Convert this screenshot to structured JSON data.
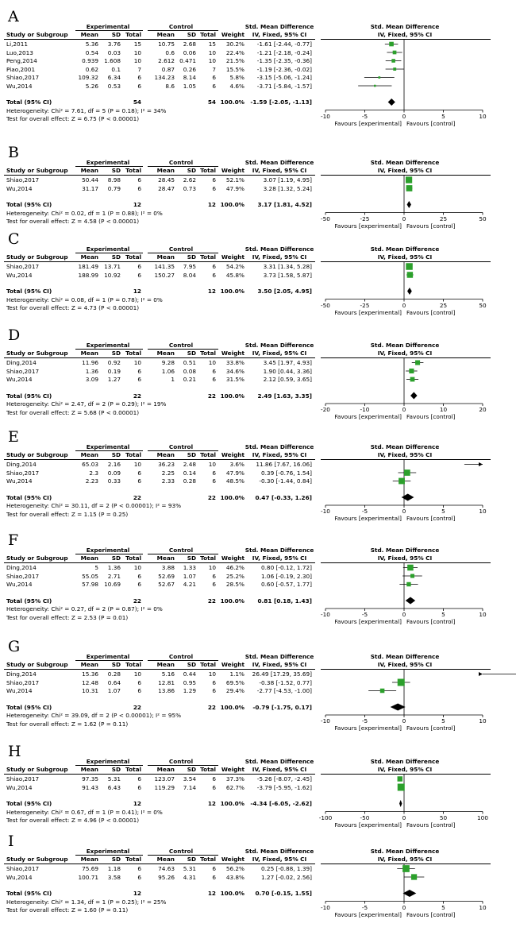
{
  "header": {
    "experimental": "Experimental",
    "control": "Control",
    "smd_title": "Std. Mean Difference",
    "method": "IV, Fixed, 95% CI",
    "study": "Study or Subgroup",
    "mean": "Mean",
    "sd": "SD",
    "total": "Total",
    "weight": "Weight",
    "total_ci": "Total (95% CI)",
    "favours_left": "Favours [experimental]",
    "favours_right": "Favours [control]"
  },
  "colors": {
    "square": "#2ca02c",
    "diamond": "#000000",
    "line": "#000000"
  },
  "chart_data": [
    {
      "type": "forest",
      "label": "A",
      "xlim": [
        -10,
        10
      ],
      "ticks": [
        "-10",
        "-5",
        "0",
        "5",
        "10"
      ],
      "tick_values": [
        -10,
        -5,
        0,
        5,
        10
      ],
      "studies": [
        {
          "name": "Li,2011",
          "em": "5.36",
          "esd": "3.76",
          "en": "15",
          "cm": "10.75",
          "csd": "2.68",
          "cn": "15",
          "w": "30.2%",
          "ci": "-1.61 [-2.44, -0.77]",
          "est": -1.61,
          "lo": -2.44,
          "hi": -0.77
        },
        {
          "name": "Luo,2013",
          "em": "0.54",
          "esd": "0.03",
          "en": "10",
          "cm": "0.6",
          "csd": "0.06",
          "cn": "10",
          "w": "22.4%",
          "ci": "-1.21 [-2.18, -0.24]",
          "est": -1.21,
          "lo": -2.18,
          "hi": -0.24
        },
        {
          "name": "Peng,2014",
          "em": "0.939",
          "esd": "1.608",
          "en": "10",
          "cm": "2.612",
          "csd": "0.471",
          "cn": "10",
          "w": "21.5%",
          "ci": "-1.35 [-2.35, -0.36]",
          "est": -1.35,
          "lo": -2.35,
          "hi": -0.36
        },
        {
          "name": "Piao,2001",
          "em": "0.62",
          "esd": "0.1",
          "en": "7",
          "cm": "0.87",
          "csd": "0.26",
          "cn": "7",
          "w": "15.5%",
          "ci": "-1.19 [-2.36, -0.02]",
          "est": -1.19,
          "lo": -2.36,
          "hi": -0.02
        },
        {
          "name": "Shiao,2017",
          "em": "109.32",
          "esd": "6.34",
          "en": "6",
          "cm": "134.23",
          "csd": "8.14",
          "cn": "6",
          "w": "5.8%",
          "ci": "-3.15 [-5.06, -1.24]",
          "est": -3.15,
          "lo": -5.06,
          "hi": -1.24
        },
        {
          "name": "Wu,2014",
          "em": "5.26",
          "esd": "0.53",
          "en": "6",
          "cm": "8.6",
          "csd": "1.05",
          "cn": "6",
          "w": "4.6%",
          "ci": "-3.71 [-5.84, -1.57]",
          "est": -3.71,
          "lo": -5.84,
          "hi": -1.57
        }
      ],
      "total": {
        "en": "54",
        "cn": "54",
        "w": "100.0%",
        "ci": "-1.59 [-2.05, -1.13]",
        "est": -1.59,
        "lo": -2.05,
        "hi": -1.13
      },
      "heterogeneity": "Heterogeneity: Chi² = 7.61, df = 5 (P = 0.18); I² = 34%",
      "overall": "Test for overall effect: Z = 6.75 (P < 0.00001)"
    },
    {
      "type": "forest",
      "label": "B",
      "xlim": [
        -50,
        50
      ],
      "ticks": [
        "-50",
        "-25",
        "0",
        "25",
        "50"
      ],
      "tick_values": [
        -50,
        -25,
        0,
        25,
        50
      ],
      "studies": [
        {
          "name": "Shiao,2017",
          "em": "50.44",
          "esd": "8.98",
          "en": "6",
          "cm": "28.45",
          "csd": "2.62",
          "cn": "6",
          "w": "52.1%",
          "ci": "3.07 [1.19, 4.95]",
          "est": 3.07,
          "lo": 1.19,
          "hi": 4.95
        },
        {
          "name": "Wu,2014",
          "em": "31.17",
          "esd": "0.79",
          "en": "6",
          "cm": "28.47",
          "csd": "0.73",
          "cn": "6",
          "w": "47.9%",
          "ci": "3.28 [1.32, 5.24]",
          "est": 3.28,
          "lo": 1.32,
          "hi": 5.24
        }
      ],
      "total": {
        "en": "12",
        "cn": "12",
        "w": "100.0%",
        "ci": "3.17 [1.81, 4.52]",
        "est": 3.17,
        "lo": 1.81,
        "hi": 4.52
      },
      "heterogeneity": "Heterogeneity: Chi² = 0.02, df = 1 (P = 0.88); I² = 0%",
      "overall": "Test for overall effect: Z = 4.58 (P < 0.00001)"
    },
    {
      "type": "forest",
      "label": "C",
      "xlim": [
        -50,
        50
      ],
      "ticks": [
        "-50",
        "-25",
        "0",
        "25",
        "50"
      ],
      "tick_values": [
        -50,
        -25,
        0,
        25,
        50
      ],
      "studies": [
        {
          "name": "Shiao,2017",
          "em": "181.49",
          "esd": "13.71",
          "en": "6",
          "cm": "141.35",
          "csd": "7.95",
          "cn": "6",
          "w": "54.2%",
          "ci": "3.31 [1.34, 5.28]",
          "est": 3.31,
          "lo": 1.34,
          "hi": 5.28
        },
        {
          "name": "Wu,2014",
          "em": "188.99",
          "esd": "10.92",
          "en": "6",
          "cm": "150.27",
          "csd": "8.04",
          "cn": "6",
          "w": "45.8%",
          "ci": "3.73 [1.58, 5.87]",
          "est": 3.73,
          "lo": 1.58,
          "hi": 5.87
        }
      ],
      "total": {
        "en": "12",
        "cn": "12",
        "w": "100.0%",
        "ci": "3.50 [2.05, 4.95]",
        "est": 3.5,
        "lo": 2.05,
        "hi": 4.95
      },
      "heterogeneity": "Heterogeneity: Chi² = 0.08, df = 1 (P = 0.78); I² = 0%",
      "overall": "Test for overall effect: Z = 4.73 (P < 0.00001)"
    },
    {
      "type": "forest",
      "label": "D",
      "xlim": [
        -20,
        20
      ],
      "ticks": [
        "-20",
        "-10",
        "0",
        "10",
        "20"
      ],
      "tick_values": [
        -20,
        -10,
        0,
        10,
        20
      ],
      "studies": [
        {
          "name": "Ding,2014",
          "em": "11.96",
          "esd": "0.92",
          "en": "10",
          "cm": "9.28",
          "csd": "0.51",
          "cn": "10",
          "w": "33.8%",
          "ci": "3.45 [1.97, 4.93]",
          "est": 3.45,
          "lo": 1.97,
          "hi": 4.93
        },
        {
          "name": "Shiao,2017",
          "em": "1.36",
          "esd": "0.19",
          "en": "6",
          "cm": "1.06",
          "csd": "0.08",
          "cn": "6",
          "w": "34.6%",
          "ci": "1.90 [0.44, 3.36]",
          "est": 1.9,
          "lo": 0.44,
          "hi": 3.36
        },
        {
          "name": "Wu,2014",
          "em": "3.09",
          "esd": "1.27",
          "en": "6",
          "cm": "1",
          "csd": "0.21",
          "cn": "6",
          "w": "31.5%",
          "ci": "2.12 [0.59, 3.65]",
          "est": 2.12,
          "lo": 0.59,
          "hi": 3.65
        }
      ],
      "total": {
        "en": "22",
        "cn": "22",
        "w": "100.0%",
        "ci": "2.49 [1.63, 3.35]",
        "est": 2.49,
        "lo": 1.63,
        "hi": 3.35
      },
      "heterogeneity": "Heterogeneity: Chi² = 2.47, df = 2 (P = 0.29); I² = 19%",
      "overall": "Test for overall effect: Z = 5.68 (P < 0.00001)"
    },
    {
      "type": "forest",
      "label": "E",
      "xlim": [
        -10,
        10
      ],
      "ticks": [
        "-10",
        "-5",
        "0",
        "5",
        "10"
      ],
      "tick_values": [
        -10,
        -5,
        0,
        5,
        10
      ],
      "studies": [
        {
          "name": "Ding,2014",
          "em": "65.03",
          "esd": "2.16",
          "en": "10",
          "cm": "36.23",
          "csd": "2.48",
          "cn": "10",
          "w": "3.6%",
          "ci": "11.86 [7.67, 16.06]",
          "est": 11.86,
          "lo": 7.67,
          "hi": 16.06
        },
        {
          "name": "Shiao,2017",
          "em": "2.3",
          "esd": "0.09",
          "en": "6",
          "cm": "2.25",
          "csd": "0.14",
          "cn": "6",
          "w": "47.9%",
          "ci": "0.39 [-0.76, 1.54]",
          "est": 0.39,
          "lo": -0.76,
          "hi": 1.54
        },
        {
          "name": "Wu,2014",
          "em": "2.23",
          "esd": "0.33",
          "en": "6",
          "cm": "2.33",
          "csd": "0.28",
          "cn": "6",
          "w": "48.5%",
          "ci": "-0.30 [-1.44, 0.84]",
          "est": -0.3,
          "lo": -1.44,
          "hi": 0.84
        }
      ],
      "total": {
        "en": "22",
        "cn": "22",
        "w": "100.0%",
        "ci": "0.47 [-0.33, 1.26]",
        "est": 0.47,
        "lo": -0.33,
        "hi": 1.26
      },
      "heterogeneity": "Heterogeneity: Chi² = 30.11, df = 2 (P < 0.00001); I² = 93%",
      "overall": "Test for overall effect: Z = 1.15 (P = 0.25)"
    },
    {
      "type": "forest",
      "label": "F",
      "xlim": [
        -10,
        10
      ],
      "ticks": [
        "-10",
        "-5",
        "0",
        "5",
        "10"
      ],
      "tick_values": [
        -10,
        -5,
        0,
        5,
        10
      ],
      "studies": [
        {
          "name": "Ding,2014",
          "em": "5",
          "esd": "1.36",
          "en": "10",
          "cm": "3.88",
          "csd": "1.33",
          "cn": "10",
          "w": "46.2%",
          "ci": "0.80 [-0.12, 1.72]",
          "est": 0.8,
          "lo": -0.12,
          "hi": 1.72
        },
        {
          "name": "Shiao,2017",
          "em": "55.05",
          "esd": "2.71",
          "en": "6",
          "cm": "52.69",
          "csd": "1.07",
          "cn": "6",
          "w": "25.2%",
          "ci": "1.06 [-0.19, 2.30]",
          "est": 1.06,
          "lo": -0.19,
          "hi": 2.3
        },
        {
          "name": "Wu,2014",
          "em": "57.98",
          "esd": "10.69",
          "en": "6",
          "cm": "52.67",
          "csd": "4.21",
          "cn": "6",
          "w": "28.5%",
          "ci": "0.60 [-0.57, 1.77]",
          "est": 0.6,
          "lo": -0.57,
          "hi": 1.77
        }
      ],
      "total": {
        "en": "22",
        "cn": "22",
        "w": "100.0%",
        "ci": "0.81 [0.18, 1.43]",
        "est": 0.81,
        "lo": 0.18,
        "hi": 1.43
      },
      "heterogeneity": "Heterogeneity: Chi² = 0.27, df = 2 (P = 0.87); I² = 0%",
      "overall": "Test for overall effect: Z = 2.53 (P = 0.01)"
    },
    {
      "type": "forest",
      "label": "G",
      "xlim": [
        -10,
        10
      ],
      "ticks": [
        "-10",
        "-5",
        "0",
        "5",
        "10"
      ],
      "tick_values": [
        -10,
        -5,
        0,
        5,
        10
      ],
      "studies": [
        {
          "name": "Ding,2014",
          "em": "15.36",
          "esd": "0.28",
          "en": "10",
          "cm": "5.16",
          "csd": "0.44",
          "cn": "10",
          "w": "1.1%",
          "ci": "26.49 [17.29, 35.69]",
          "est": 26.49,
          "lo": 17.29,
          "hi": 35.69
        },
        {
          "name": "Shiao,2017",
          "em": "12.48",
          "esd": "0.64",
          "en": "6",
          "cm": "12.81",
          "csd": "0.95",
          "cn": "6",
          "w": "69.5%",
          "ci": "-0.38 [-1.52, 0.77]",
          "est": -0.38,
          "lo": -1.52,
          "hi": 0.77
        },
        {
          "name": "Wu,2014",
          "em": "10.31",
          "esd": "1.07",
          "en": "6",
          "cm": "13.86",
          "csd": "1.29",
          "cn": "6",
          "w": "29.4%",
          "ci": "-2.77 [-4.53, -1.00]",
          "est": -2.77,
          "lo": -4.53,
          "hi": -1.0
        }
      ],
      "total": {
        "en": "22",
        "cn": "22",
        "w": "100.0%",
        "ci": "-0.79 [-1.75, 0.17]",
        "est": -0.79,
        "lo": -1.75,
        "hi": 0.17
      },
      "heterogeneity": "Heterogeneity: Chi² = 39.09, df = 2 (P < 0.00001); I² = 95%",
      "overall": "Test for overall effect: Z = 1.62 (P = 0.11)"
    },
    {
      "type": "forest",
      "label": "H",
      "xlim": [
        -100,
        100
      ],
      "ticks": [
        "-100",
        "-50",
        "0",
        "50",
        "100"
      ],
      "tick_values": [
        -100,
        -50,
        0,
        50,
        100
      ],
      "studies": [
        {
          "name": "Shiao,2017",
          "em": "97.35",
          "esd": "5.31",
          "en": "6",
          "cm": "123.07",
          "csd": "3.54",
          "cn": "6",
          "w": "37.3%",
          "ci": "-5.26 [-8.07, -2.45]",
          "est": -5.26,
          "lo": -8.07,
          "hi": -2.45
        },
        {
          "name": "Wu,2014",
          "em": "91.43",
          "esd": "6.43",
          "en": "6",
          "cm": "119.29",
          "csd": "7.14",
          "cn": "6",
          "w": "62.7%",
          "ci": "-3.79 [-5.95, -1.62]",
          "est": -3.79,
          "lo": -5.95,
          "hi": -1.62
        }
      ],
      "total": {
        "en": "12",
        "cn": "12",
        "w": "100.0%",
        "ci": "-4.34 [-6.05, -2.62]",
        "est": -4.34,
        "lo": -6.05,
        "hi": -2.62
      },
      "heterogeneity": "Heterogeneity: Chi² = 0.67, df = 1 (P = 0.41); I² = 0%",
      "overall": "Test for overall effect: Z = 4.96 (P < 0.00001)"
    },
    {
      "type": "forest",
      "label": "I",
      "xlim": [
        -10,
        10
      ],
      "ticks": [
        "-10",
        "-5",
        "0",
        "5",
        "10"
      ],
      "tick_values": [
        -10,
        -5,
        0,
        5,
        10
      ],
      "studies": [
        {
          "name": "Shiao,2017",
          "em": "75.69",
          "esd": "1.18",
          "en": "6",
          "cm": "74.63",
          "csd": "5.31",
          "cn": "6",
          "w": "56.2%",
          "ci": "0.25 [-0.88, 1.39]",
          "est": 0.25,
          "lo": -0.88,
          "hi": 1.39
        },
        {
          "name": "Wu,2014",
          "em": "100.71",
          "esd": "3.58",
          "en": "6",
          "cm": "95.26",
          "csd": "4.31",
          "cn": "6",
          "w": "43.8%",
          "ci": "1.27 [-0.02, 2.56]",
          "est": 1.27,
          "lo": -0.02,
          "hi": 2.56
        }
      ],
      "total": {
        "en": "12",
        "cn": "12",
        "w": "100.0%",
        "ci": "0.70 [-0.15, 1.55]",
        "est": 0.7,
        "lo": -0.15,
        "hi": 1.55
      },
      "heterogeneity": "Heterogeneity: Chi² = 1.34, df = 1 (P = 0.25); I² = 25%",
      "overall": "Test for overall effect: Z = 1.60 (P = 0.11)"
    }
  ]
}
